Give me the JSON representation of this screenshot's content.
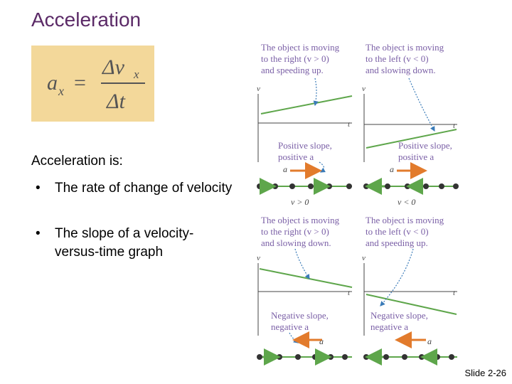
{
  "slide": {
    "title": "Acceleration",
    "formula": {
      "lhs": "a",
      "lhs_sub": "x",
      "equals": "=",
      "numerator": "Δv",
      "numerator_sub": "x",
      "denominator": "Δt"
    },
    "intro": "Acceleration is:",
    "bullets": [
      {
        "marker": "•",
        "text": "The rate of change of velocity"
      },
      {
        "marker": "•",
        "text": "The slope of a velocity-versus-time graph"
      }
    ],
    "slide_number": "Slide 2-26"
  },
  "figure": {
    "colors": {
      "green": "#5ea64b",
      "orange": "#e27b2c",
      "blue": "#3a7bb8",
      "caption_purple": "#7a5fa6",
      "axis": "#444444"
    },
    "panels": [
      {
        "caption": [
          "The object is moving",
          "to the right (v  > 0)",
          "and speeding up."
        ],
        "slope": [
          "Positive slope,",
          "positive a"
        ]
      },
      {
        "caption": [
          "The object is moving",
          "to the left (v  < 0)",
          "and slowing down."
        ],
        "slope": [
          "Positive slope,",
          "positive a"
        ]
      },
      {
        "caption": [
          "The object is moving",
          "to the right (v  > 0)",
          "and slowing down."
        ],
        "slope": [
          "Negative slope,",
          "negative a"
        ]
      },
      {
        "caption": [
          "The object is moving",
          "to the left (v  < 0)",
          "and speeding up."
        ],
        "slope": [
          "Negative slope,",
          "negative a"
        ]
      }
    ],
    "axis_v": "v",
    "axis_v_sub": "x",
    "axis_t": "t",
    "accel_label": "a",
    "vel_right": "v  > 0",
    "vel_left": "v  < 0"
  }
}
